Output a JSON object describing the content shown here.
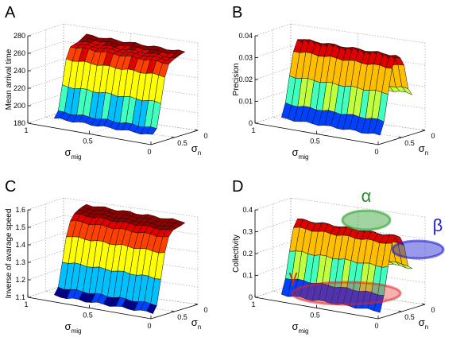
{
  "chart_data": [
    {
      "type": "surface",
      "panel_label": "A",
      "zlabel": "Mean arrival time",
      "xlabel_main": "σ",
      "xlabel_sub": "mig",
      "ylabel_main": "σ",
      "ylabel_sub": "n",
      "zlim": [
        180,
        280
      ],
      "zticks": [
        "180",
        "200",
        "220",
        "240",
        "260",
        "280"
      ],
      "xticks": [
        "1",
        "0.5",
        "0"
      ],
      "yticks": [
        "0.5",
        "0"
      ],
      "grid": "on",
      "colormap": [
        "#00008f",
        "#0040ff",
        "#00c0ff",
        "#40ffbf",
        "#bfff40",
        "#ffff00",
        "#ffbf00",
        "#ff4000",
        "#df0000",
        "#8f0000"
      ],
      "z_profile": [
        190,
        191,
        196,
        208,
        224,
        240,
        253,
        262,
        266,
        267,
        268,
        268,
        269,
        270,
        271,
        272,
        273
      ]
    },
    {
      "type": "surface",
      "panel_label": "B",
      "zlabel": "Precision",
      "xlabel_main": "σ",
      "xlabel_sub": "mig",
      "ylabel_main": "σ",
      "ylabel_sub": "n",
      "zlim": [
        0,
        0.04
      ],
      "zticks": [
        "0",
        "0.01",
        "0.02",
        "0.03",
        "0.04"
      ],
      "xticks": [
        "1",
        "0.5",
        "0"
      ],
      "yticks": [
        "0.5",
        "0"
      ],
      "grid": "on",
      "z_profile": [
        0.004,
        0.006,
        0.01,
        0.016,
        0.022,
        0.028,
        0.033,
        0.036,
        0.038,
        0.037,
        0.036,
        0.035,
        0.032,
        0.028,
        0.021,
        0.02,
        0.018
      ]
    },
    {
      "type": "surface",
      "panel_label": "C",
      "zlabel": "Inverse of avarage speed",
      "xlabel_main": "σ",
      "xlabel_sub": "mig",
      "ylabel_main": "σ",
      "ylabel_sub": "n",
      "zlim": [
        1.1,
        1.6
      ],
      "zticks": [
        "1.1",
        "1.2",
        "1.3",
        "1.4",
        "1.5",
        "1.6"
      ],
      "xticks": [
        "1",
        "0.5",
        "0"
      ],
      "yticks": [
        "0.5",
        "0"
      ],
      "grid": "on",
      "z_profile": [
        1.13,
        1.14,
        1.17,
        1.23,
        1.31,
        1.39,
        1.45,
        1.5,
        1.53,
        1.55,
        1.56,
        1.57,
        1.57,
        1.58,
        1.58,
        1.59,
        1.59
      ]
    },
    {
      "type": "surface",
      "panel_label": "D",
      "zlabel": "Collectivity",
      "xlabel_main": "σ",
      "xlabel_sub": "mig",
      "ylabel_main": "σ",
      "ylabel_sub": "n",
      "zlim": [
        0,
        0.4
      ],
      "zticks": [
        "0",
        "0.1",
        "0.2",
        "0.3",
        "0.4"
      ],
      "xticks": [
        "1",
        "0.5",
        "0"
      ],
      "yticks": [
        "0.5",
        "0"
      ],
      "grid": "on",
      "z_profile": [
        0.03,
        0.05,
        0.1,
        0.16,
        0.22,
        0.28,
        0.32,
        0.34,
        0.35,
        0.35,
        0.34,
        0.33,
        0.3,
        0.26,
        0.2,
        0.19,
        0.18
      ],
      "annotations": [
        {
          "text": "α",
          "color": "#2e8b2e"
        },
        {
          "text": "β",
          "color": "#2020d0"
        },
        {
          "text": "γ",
          "color": "#e02020"
        }
      ]
    }
  ]
}
